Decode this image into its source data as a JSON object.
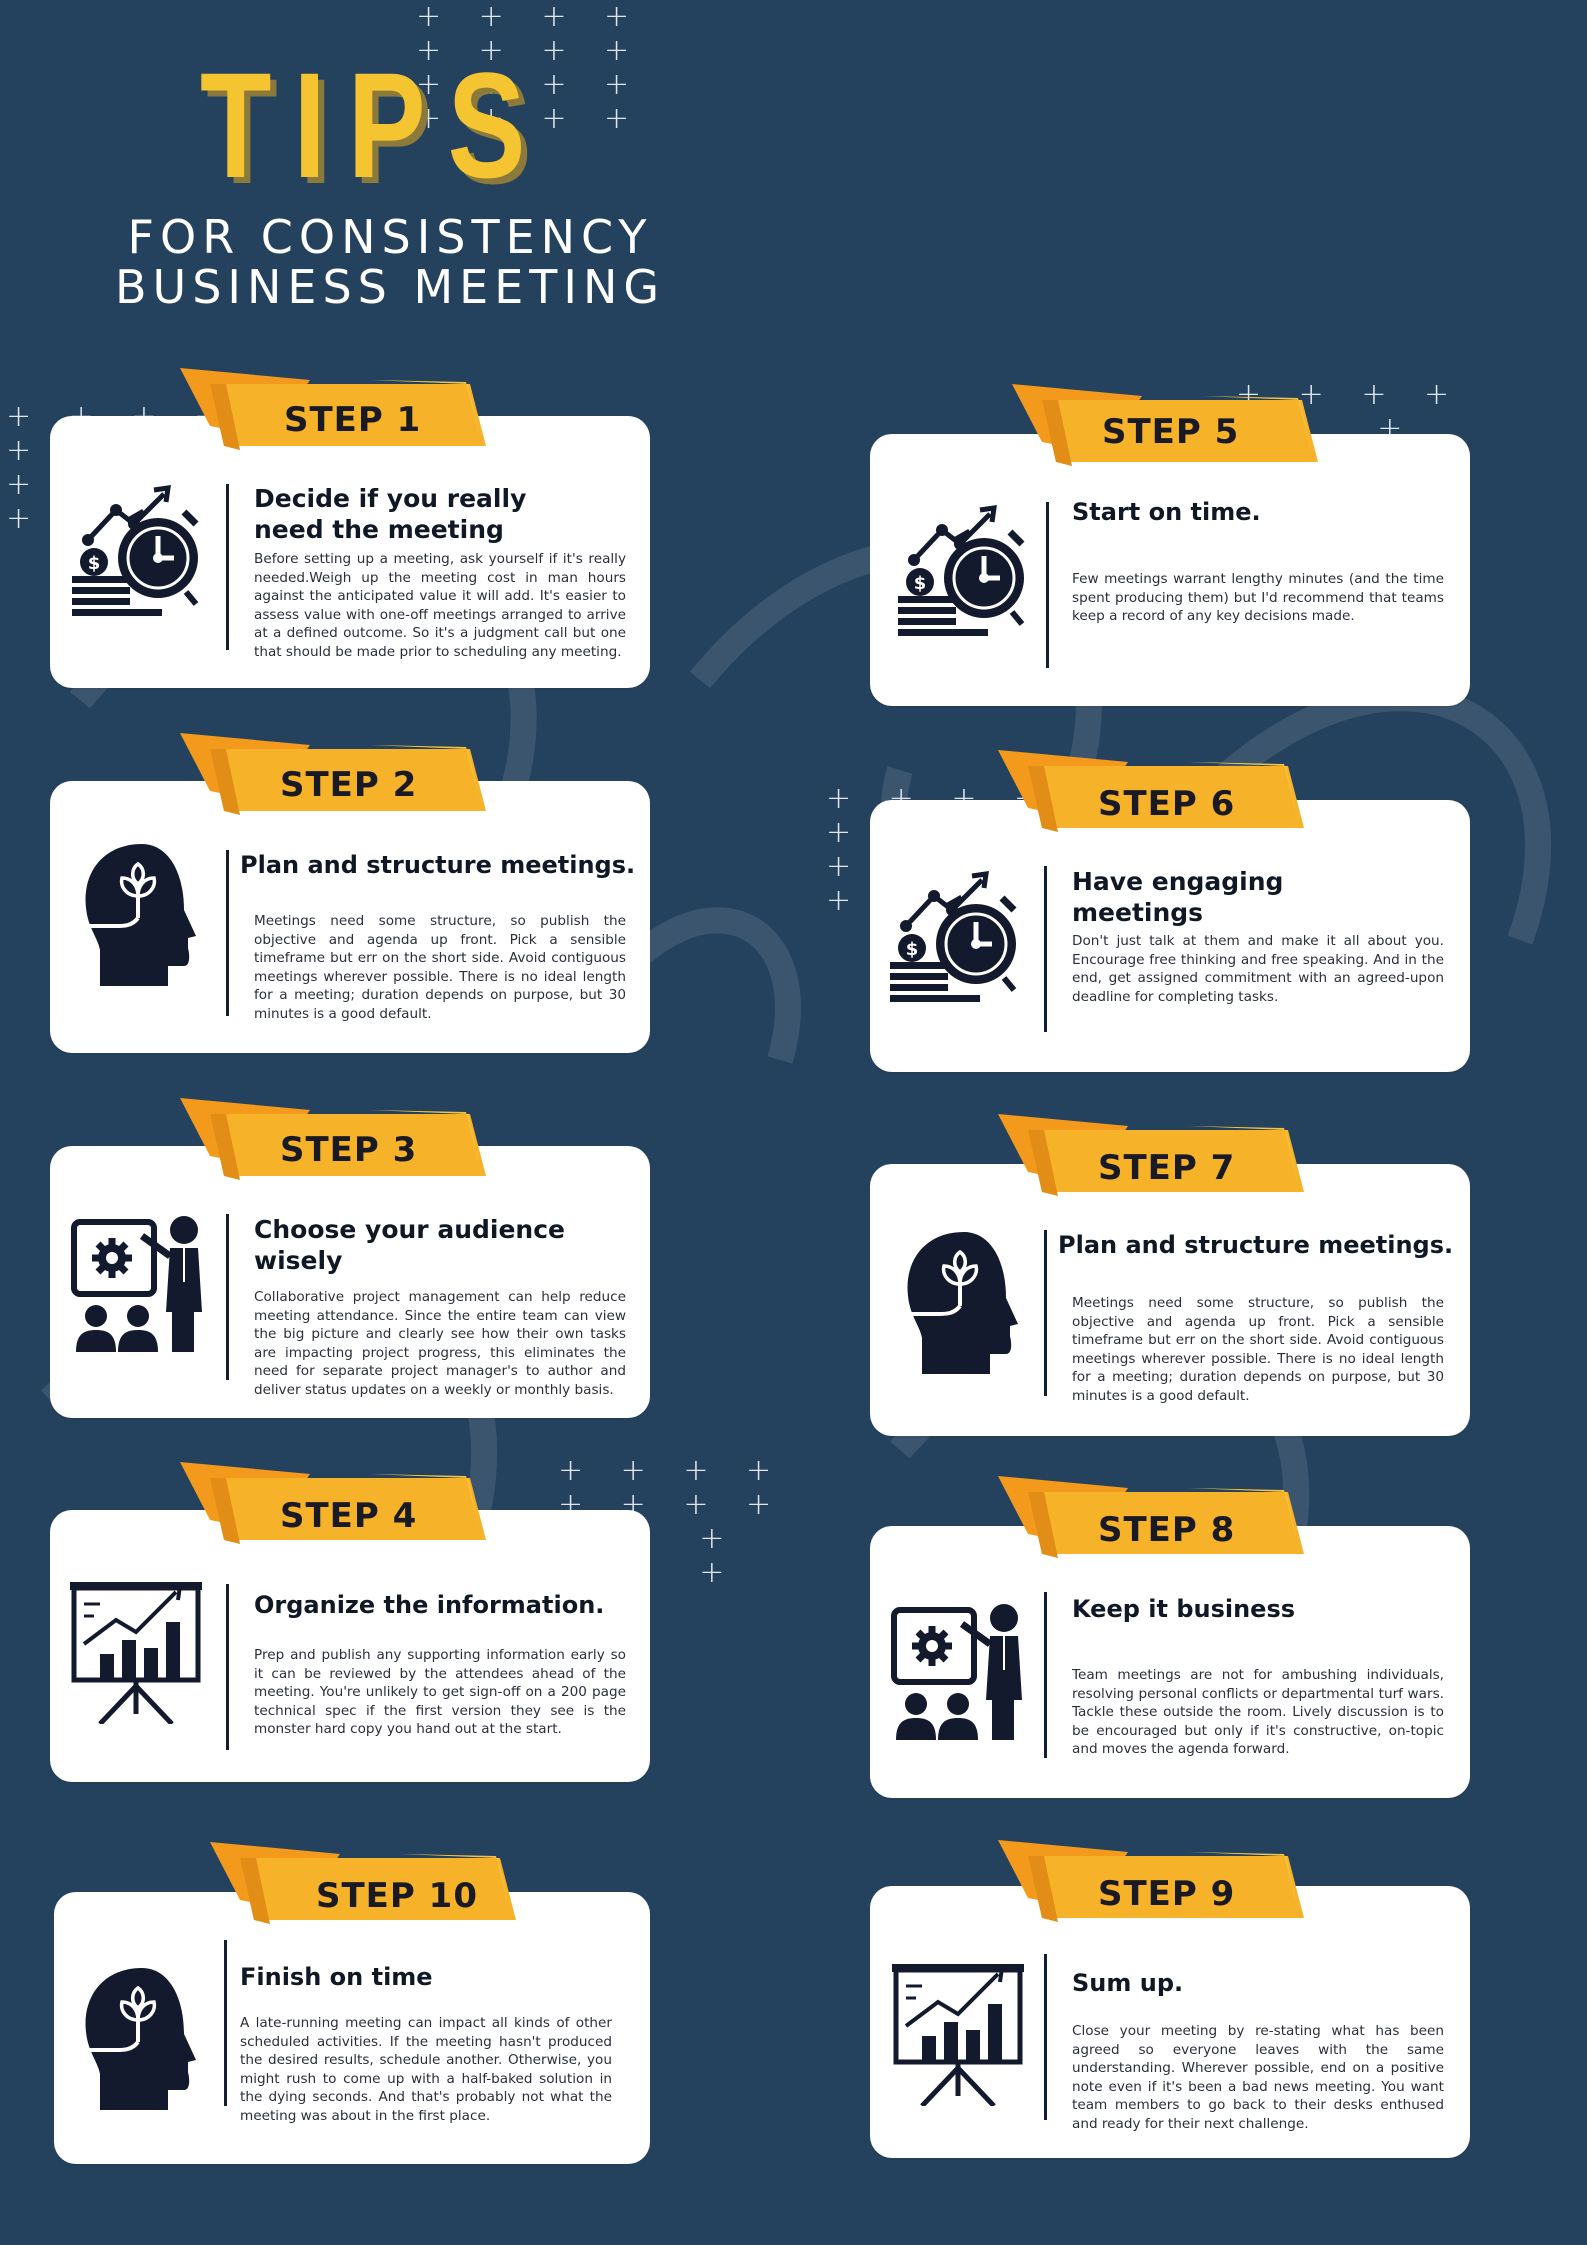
{
  "header": {
    "title": "TIPS",
    "subtitle_line1": "FOR CONSISTENCY",
    "subtitle_line2": "BUSINESS MEETING"
  },
  "colors": {
    "background": "#24425e",
    "accent": "#f5b72a",
    "accent_dark": "#f39a1c",
    "card": "#ffffff",
    "ink": "#101826"
  },
  "steps": {
    "s1": {
      "label": "STEP 1",
      "icon": "clock-money-icon",
      "title": "Decide if you really need the meeting",
      "body": "Before setting up a meeting, ask yourself if it's really needed.Weigh up the meeting cost in man hours against the anticipated value it will add. It's easier to assess value with one-off meetings arranged to arrive at a defined outcome. So it's a judgment call but one that should be made prior to scheduling any meeting."
    },
    "s2": {
      "label": "STEP 2",
      "icon": "head-plant-icon",
      "title": "Plan and structure meetings.",
      "body": "Meetings need some structure, so publish the objective and agenda up front. Pick a sensible timeframe but err on the short side. Avoid contiguous meetings wherever possible. There is no ideal length for a meeting; duration depends on purpose, but 30 minutes is a good default."
    },
    "s3": {
      "label": "STEP 3",
      "icon": "presentation-audience-icon",
      "title": "Choose your audience wisely",
      "body": "Collaborative project management can help reduce meeting attendance. Since the entire team can view the big picture and clearly see how their own tasks are impacting project progress, this eliminates the need for separate project manager's to author and deliver status updates on a weekly or monthly basis."
    },
    "s4": {
      "label": "STEP 4",
      "icon": "chart-easel-icon",
      "title": "Organize the information.",
      "body": "Prep and publish any supporting information early so it can be reviewed by the attendees ahead of the meeting. You're unlikely to get sign-off on a 200 page technical spec if the first version they see is the monster hard copy you hand out at the start."
    },
    "s5": {
      "label": "STEP 5",
      "icon": "clock-money-icon",
      "title": "Start on time.",
      "body": "Few meetings warrant lengthy minutes (and the time spent producing them) but I'd recommend that teams keep a record of any key decisions made."
    },
    "s6": {
      "label": "STEP 6",
      "icon": "clock-money-icon",
      "title": "Have engaging meetings",
      "body": "Don't just talk at them and make it all about you. Encourage free thinking and free speaking. And in the end, get assigned commitment with an agreed-upon deadline for completing tasks."
    },
    "s7": {
      "label": "STEP 7",
      "icon": "head-plant-icon",
      "title": "Plan and structure meetings.",
      "body": "Meetings need some structure, so publish the objective and agenda up front. Pick a sensible timeframe but err on the short side. Avoid contiguous meetings wherever possible. There is no ideal length for a meeting; duration depends on purpose, but 30 minutes is a good default."
    },
    "s8": {
      "label": "STEP 8",
      "icon": "presentation-audience-icon",
      "title": "Keep it business",
      "body": "Team meetings are not for ambushing individuals, resolving personal conflicts or departmental turf wars. Tackle these outside the room. Lively discussion is to be encouraged but only if it's constructive, on-topic and moves the agenda forward."
    },
    "s9": {
      "label": "STEP 9",
      "icon": "chart-easel-icon",
      "title": "Sum up.",
      "body": "Close your meeting by re-stating what has been agreed so everyone leaves with the same understanding. Wherever possible, end on a positive note even if it's been a bad news meeting. You want team members to go back to their desks enthused and ready for their next challenge."
    },
    "s10": {
      "label": "STEP 10",
      "icon": "head-plant-icon",
      "title": "Finish on time",
      "body": "A late-running meeting can impact all kinds of other scheduled activities. If the meeting hasn't produced the desired results, schedule another. Otherwise, you might rush to come up with a half-baked solution in the dying seconds. And that's probably not what the meeting was about in the first place."
    }
  }
}
